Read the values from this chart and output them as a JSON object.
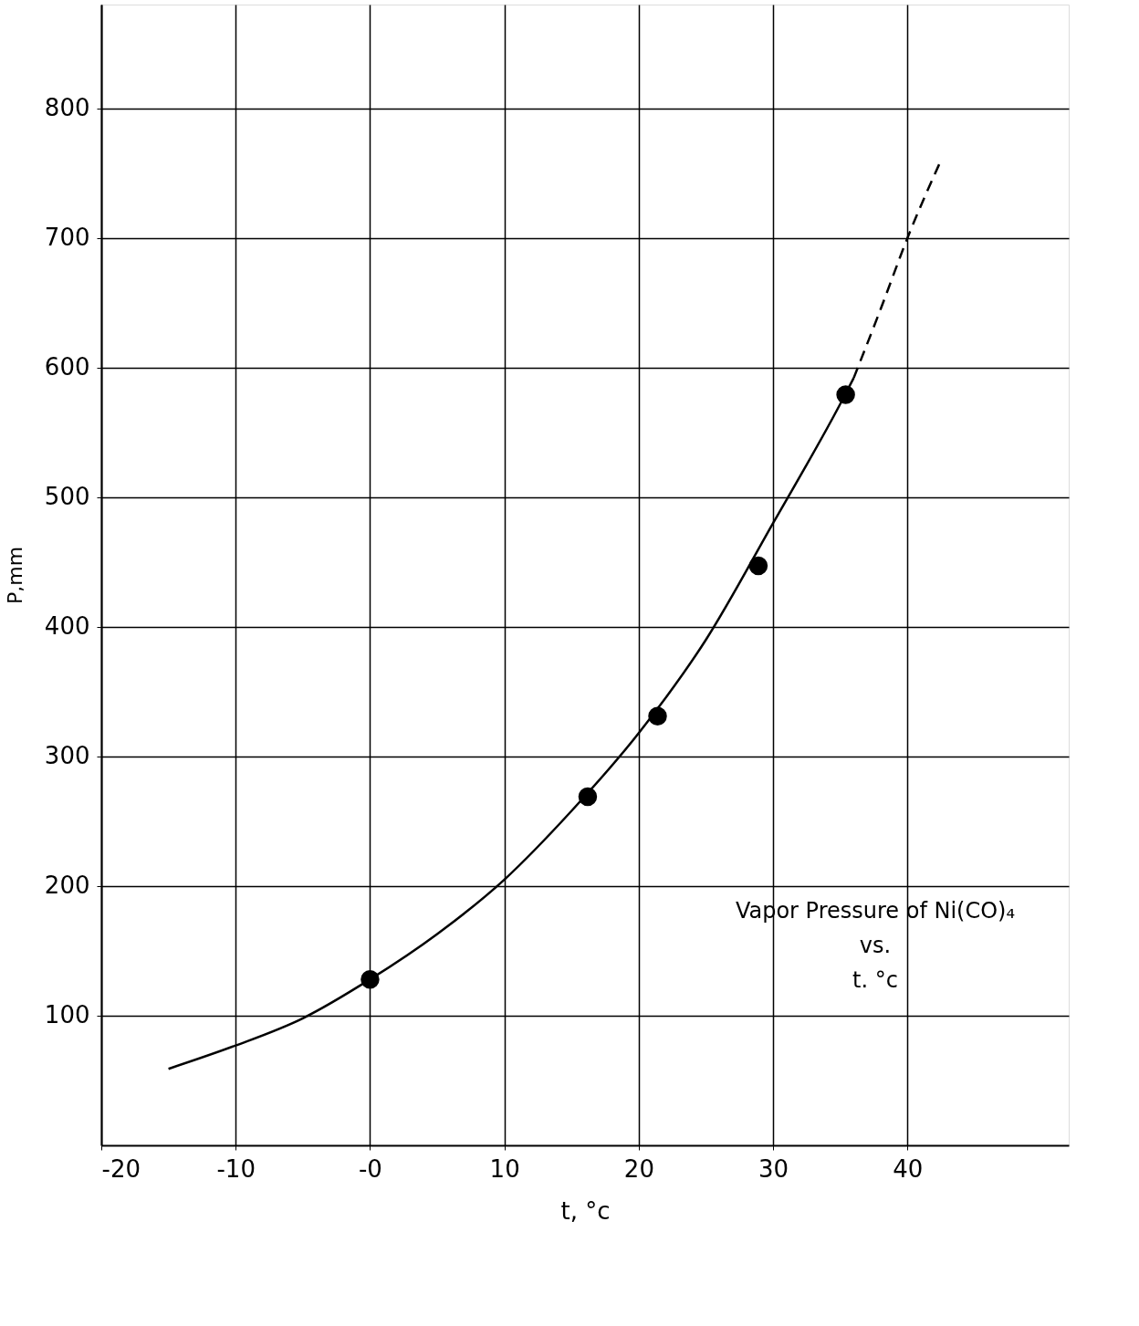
{
  "chart_data": {
    "type": "line",
    "xlabel": "t, °c",
    "ylabel": "P,mm",
    "xlim": [
      -20,
      52
    ],
    "ylim": [
      0,
      880
    ],
    "xticks": [
      -20,
      -10,
      {
        "value": 0,
        "label": "-0"
      },
      10,
      20,
      30,
      40
    ],
    "yticks": [
      100,
      200,
      300,
      400,
      500,
      600,
      700,
      800
    ],
    "grid": true,
    "series": [
      {
        "line_style": "solid",
        "marker": "none",
        "color": "#000000",
        "x": [
          -15,
          -10,
          -5,
          0,
          5,
          10,
          15,
          20,
          25,
          30,
          35,
          36
        ],
        "values": [
          59,
          77,
          98,
          128,
          163,
          205,
          258,
          318,
          390,
          480,
          572,
          592
        ]
      },
      {
        "line_style": "dashed",
        "marker": "none",
        "color": "#000000",
        "x": [
          36,
          38,
          40,
          42.5
        ],
        "values": [
          592,
          645,
          700,
          760
        ]
      },
      {
        "type": "scatter",
        "marker": "circle",
        "color": "#000000",
        "x": [
          0,
          16.2,
          21.4,
          28.9,
          35.4
        ],
        "values": [
          128,
          269,
          331,
          447,
          579
        ]
      }
    ],
    "annotations": [
      "Vapor Pressure of Ni(CO)₄",
      "vs.",
      "t. °c"
    ]
  }
}
